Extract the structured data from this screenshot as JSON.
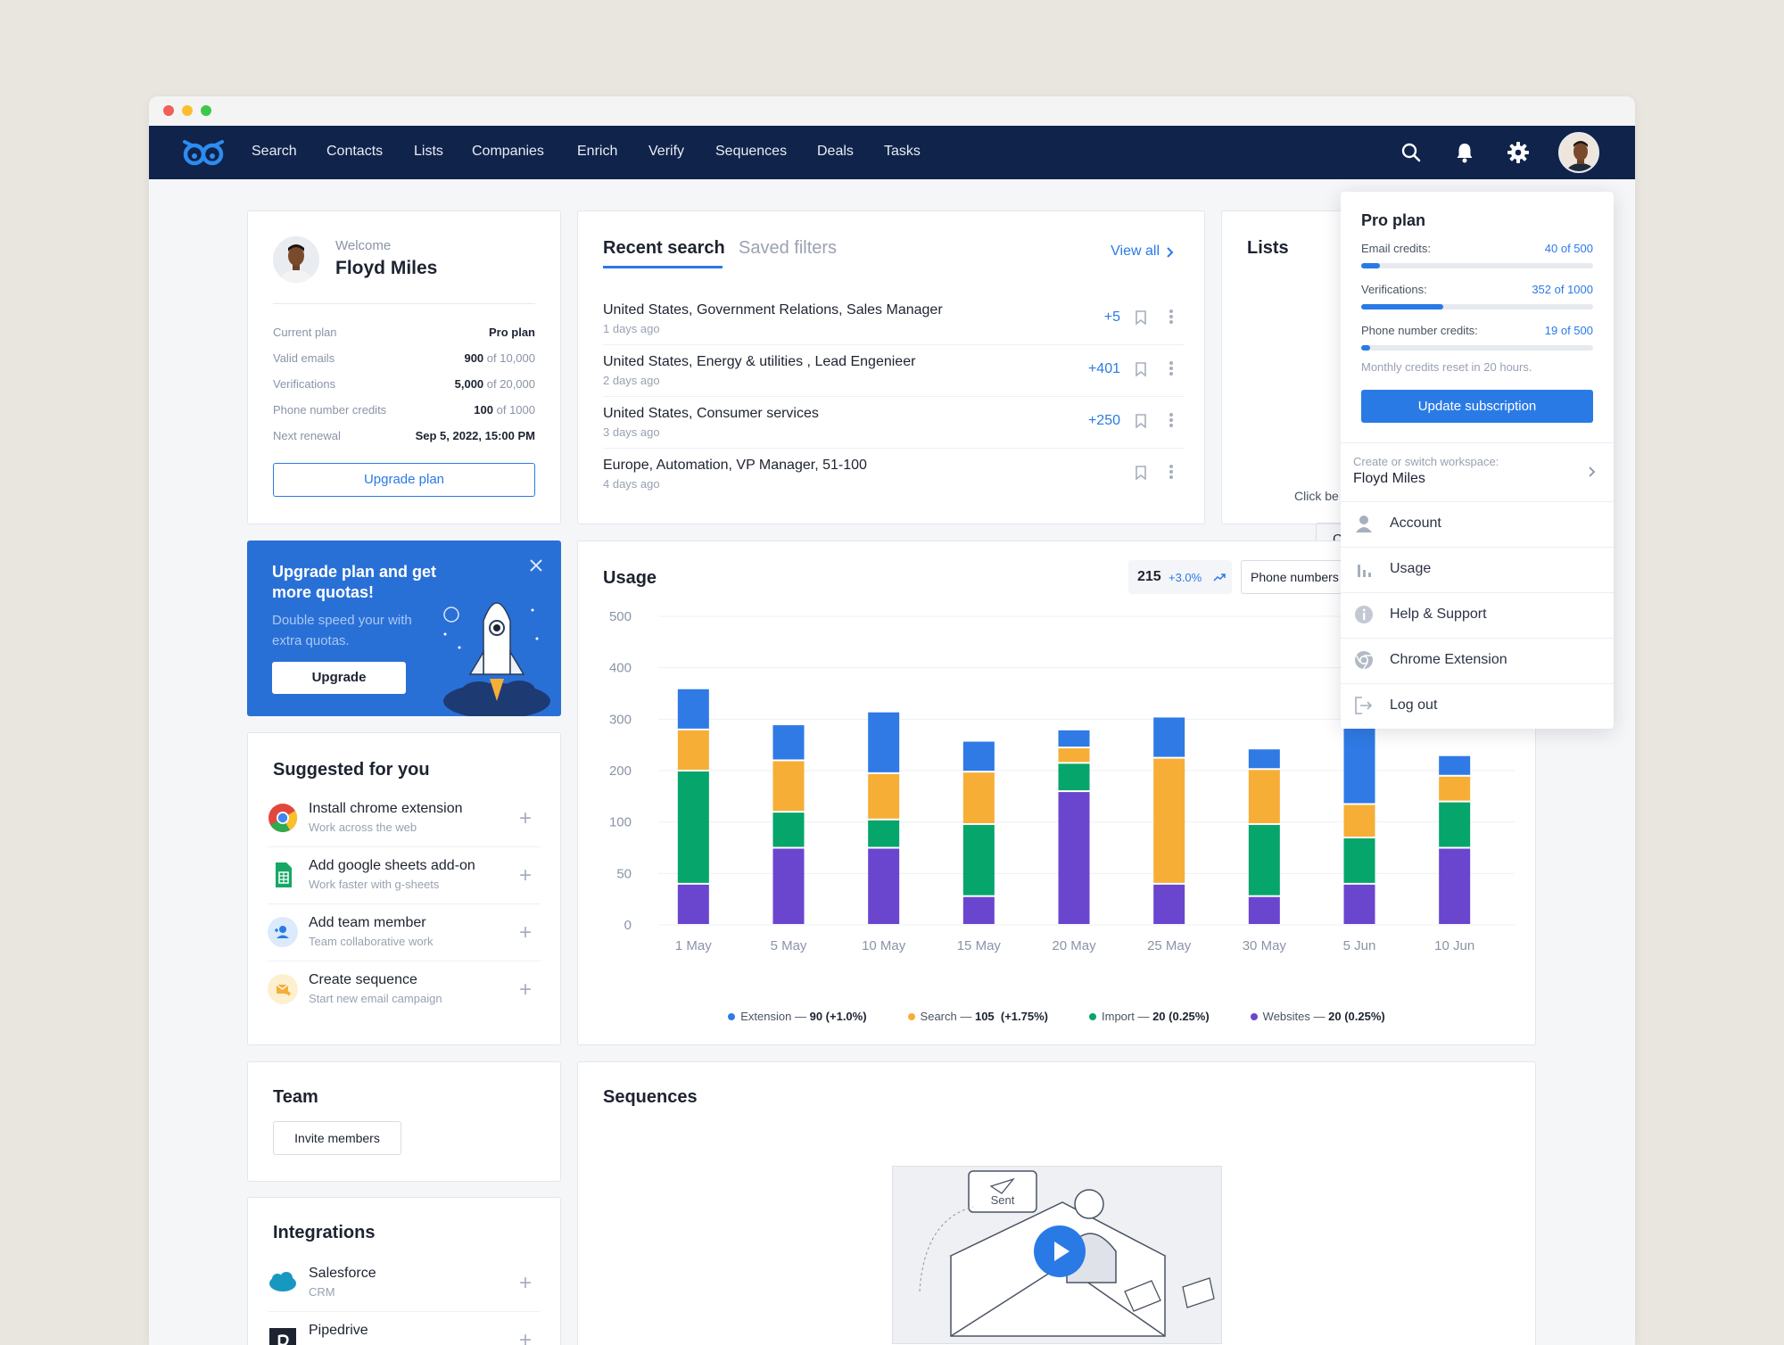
{
  "nav": {
    "items": [
      "Search",
      "Contacts",
      "Lists",
      "Companies",
      "Enrich",
      "Verify",
      "Sequences",
      "Deals",
      "Tasks"
    ]
  },
  "welcome": {
    "greeting": "Welcome",
    "name": "Floyd Miles",
    "rows": [
      {
        "label": "Current plan",
        "value": "Pro plan",
        "extra": ""
      },
      {
        "label": "Valid emails",
        "value": "900",
        "extra": " of 10,000"
      },
      {
        "label": "Verifications",
        "value": "5,000",
        "extra": " of 20,000"
      },
      {
        "label": "Phone number credits",
        "value": "100",
        "extra": " of 1000"
      },
      {
        "label": "Next renewal",
        "value": "Sep 5, 2022, 15:00 PM",
        "extra": ""
      }
    ],
    "upgrade_button": "Upgrade plan"
  },
  "promo": {
    "title": "Upgrade plan and get more quotas!",
    "subtitle": "Double speed your with extra quotas.",
    "button": "Upgrade"
  },
  "suggested": {
    "title": "Suggested for you",
    "items": [
      {
        "title": "Install chrome extension",
        "sub": "Work across the web",
        "icon": "chrome-icon"
      },
      {
        "title": "Add google sheets add-on",
        "sub": "Work faster with g-sheets",
        "icon": "google-sheets-icon"
      },
      {
        "title": "Add team member",
        "sub": "Team collaborative work",
        "icon": "add-user-icon"
      },
      {
        "title": "Create sequence",
        "sub": "Start new email campaign",
        "icon": "sequence-mail-icon"
      }
    ]
  },
  "team": {
    "title": "Team",
    "invite_button": "Invite members"
  },
  "integrations": {
    "title": "Integrations",
    "items": [
      {
        "title": "Salesforce",
        "sub": "CRM",
        "icon": "salesforce-icon"
      },
      {
        "title": "Pipedrive",
        "sub": "",
        "icon": "pipedrive-icon"
      }
    ]
  },
  "recent": {
    "tab_active": "Recent search",
    "tab_inactive": "Saved filters",
    "view_all": "View all",
    "rows": [
      {
        "title": "United States, Government Relations, Sales Manager",
        "sub": "1 days ago",
        "count": "+5"
      },
      {
        "title": "United States, Energy & utilities , Lead Engenieer",
        "sub": "2 days ago",
        "count": "+401"
      },
      {
        "title": "United States, Consumer services",
        "sub": "3 days ago",
        "count": "+250"
      },
      {
        "title": "Europe, Automation, VP Manager, 51-100",
        "sub": "4 days ago",
        "count": ""
      }
    ]
  },
  "lists": {
    "title": "Lists",
    "hint": "Click be",
    "button_partial": "C"
  },
  "usage": {
    "title": "Usage",
    "metric_value": "215",
    "metric_change": "+3.0%",
    "filter_label": "Phone numbers",
    "legend": [
      {
        "label": "Extension — ",
        "value": "90 (+1.0%)",
        "color": "#2f7ae5"
      },
      {
        "label": "Search — ",
        "value": "105  (+1.75%)",
        "color": "#f6ae37"
      },
      {
        "label": "Import — ",
        "value": "20 (0.25%)",
        "color": "#06a56b"
      },
      {
        "label": "Websites — ",
        "value": "20 (0.25%)",
        "color": "#6a46cf"
      }
    ]
  },
  "chart_data": {
    "type": "bar",
    "stacked": true,
    "categories": [
      "1 May",
      "5 May",
      "10 May",
      "15 May",
      "20 May",
      "25 May",
      "30 May",
      "5 Jun",
      "10 Jun"
    ],
    "y_ticks": [
      "500",
      "400",
      "300",
      "200",
      "100",
      "50",
      "0"
    ],
    "series": [
      {
        "name": "Websites",
        "color": "#6a46cf",
        "values": [
          40,
          75,
          75,
          28,
          160,
          40,
          28,
          40,
          75
        ]
      },
      {
        "name": "Import",
        "color": "#06a56b",
        "values": [
          160,
          45,
          30,
          70,
          55,
          0,
          70,
          45,
          65
        ]
      },
      {
        "name": "Search",
        "color": "#f6ae37",
        "values": [
          80,
          100,
          90,
          100,
          30,
          185,
          105,
          50,
          50
        ]
      },
      {
        "name": "Extension",
        "color": "#2f7ae5",
        "values": [
          80,
          70,
          120,
          60,
          35,
          80,
          40,
          160,
          40
        ]
      }
    ]
  },
  "sequences": {
    "title": "Sequences",
    "illustration_label": "Sent"
  },
  "dropdown": {
    "plan_title": "Pro plan",
    "credits": [
      {
        "label": "Email credits:",
        "value": "40 of 500",
        "fraction": 0.08
      },
      {
        "label": "Verifications:",
        "value": "352 of 1000",
        "fraction": 0.352
      },
      {
        "label": "Phone number credits:",
        "value": "19 of 500",
        "fraction": 0.038
      }
    ],
    "reset_note": "Monthly credits reset in 20 hours.",
    "update_button": "Update subscription",
    "workspace_label": "Create or switch workspace:",
    "workspace_name": "Floyd Miles",
    "menu": [
      {
        "label": "Account",
        "icon": "person-icon"
      },
      {
        "label": "Usage",
        "icon": "bar-chart-icon"
      },
      {
        "label": "Help & Support",
        "icon": "info-icon"
      },
      {
        "label": "Chrome Extension",
        "icon": "chrome-icon"
      },
      {
        "label": "Log out",
        "icon": "logout-icon"
      }
    ]
  }
}
